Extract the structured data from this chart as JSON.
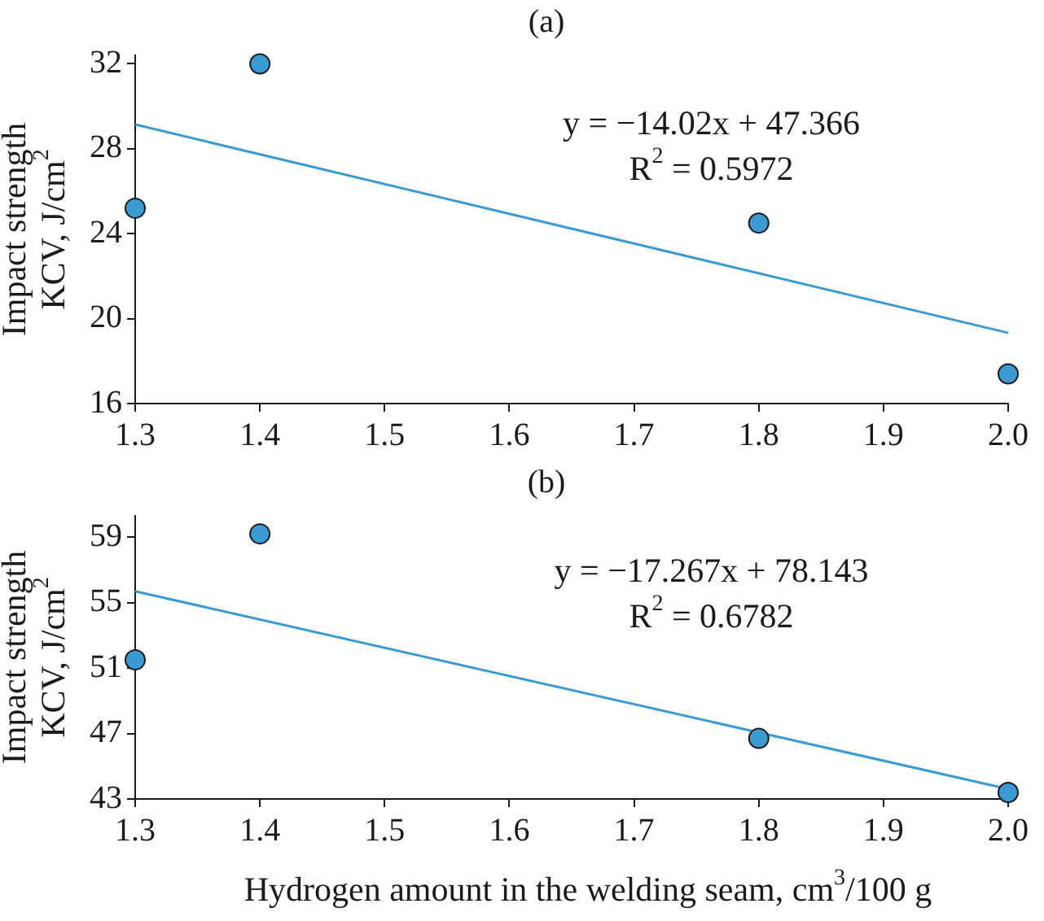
{
  "chart_data": [
    {
      "type": "scatter",
      "title": "(a)",
      "ylabel": "Impact strength\nKCV, J/cm$^{2}$",
      "xlim": [
        1.3,
        2.0
      ],
      "xticks": [
        1.3,
        1.4,
        1.5,
        1.6,
        1.7,
        1.8,
        1.9,
        {
          "value": 2.0,
          "label": "2.0"
        }
      ],
      "ylim": [
        16,
        32.4
      ],
      "yticks": [
        16,
        20,
        24,
        28,
        32
      ],
      "grid": false,
      "marker": "circle",
      "series": [
        {
          "x": [
            1.3,
            1.4,
            1.8,
            2.0
          ],
          "values": [
            25.2,
            32.0,
            24.5,
            17.4
          ],
          "color": "#3a9ad1"
        },
        {
          "type": "line",
          "x": [
            1.3,
            2.0
          ],
          "values": [
            29.14,
            19.33
          ],
          "color": "#3a9ad1",
          "marker": "none"
        }
      ],
      "annotations": [
        "y = −14.02x + 47.366",
        "R$^{2}$ = 0.5972"
      ]
    },
    {
      "type": "scatter",
      "title": "(b)",
      "ylabel": "Impact strength\nKCV, J/cm$^{2}$",
      "xlabel": "Hydrogen amount in the welding seam, cm$^{3}$/100 g",
      "xlim": [
        1.3,
        2.0
      ],
      "xticks": [
        1.3,
        1.4,
        1.5,
        1.6,
        1.7,
        1.8,
        1.9,
        {
          "value": 2.0,
          "label": "2.0"
        }
      ],
      "ylim": [
        43,
        60.3
      ],
      "yticks": [
        43,
        47,
        51,
        55,
        59
      ],
      "grid": false,
      "marker": "circle",
      "series": [
        {
          "x": [
            1.3,
            1.4,
            1.8,
            2.0
          ],
          "values": [
            51.5,
            59.2,
            46.7,
            43.4
          ],
          "color": "#3a9ad1"
        },
        {
          "type": "line",
          "x": [
            1.3,
            2.0
          ],
          "values": [
            55.69,
            43.61
          ],
          "color": "#3a9ad1",
          "marker": "none"
        }
      ],
      "annotations": [
        "y = −17.267x + 78.143",
        "R$^{2}$ = 0.6782"
      ]
    }
  ]
}
